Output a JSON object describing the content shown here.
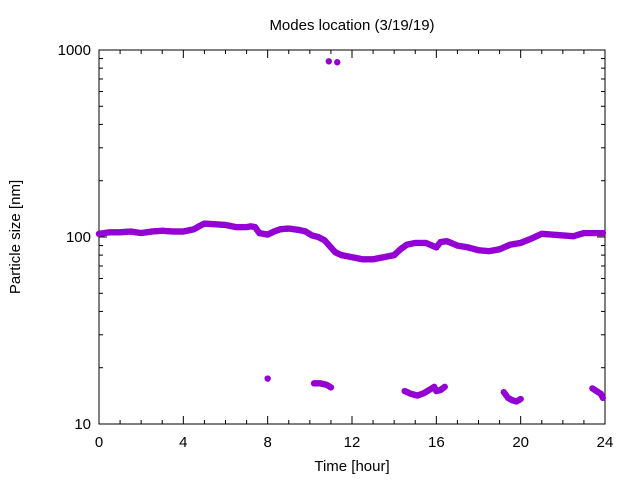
{
  "chart_data": {
    "type": "scatter",
    "title": "Modes location (3/19/19)",
    "xlabel": "Time [hour]",
    "ylabel": "Particle size [nm]",
    "xlim": [
      0,
      24
    ],
    "ylim": [
      10,
      1000
    ],
    "yscale": "log",
    "x_ticks": [
      0,
      4,
      8,
      12,
      16,
      20,
      24
    ],
    "y_ticks": [
      10,
      100,
      1000
    ],
    "grid": false,
    "legend": "none",
    "marker_color": "#9400d3",
    "series": [
      {
        "x": [
          0.0,
          0.5,
          1.0,
          1.5,
          2.0,
          2.5,
          3.0,
          3.5,
          4.0,
          4.5,
          4.8,
          5.0,
          5.5,
          6.0,
          6.5,
          7.0,
          7.2,
          7.4,
          7.6,
          8.0,
          8.3,
          8.6,
          9.0,
          9.5,
          9.8,
          10.1,
          10.4,
          10.7,
          11.0,
          11.2,
          11.5,
          12.0,
          12.5,
          13.0,
          13.5,
          14.0,
          14.3,
          14.6,
          15.0,
          15.5,
          16.0,
          16.2,
          16.5,
          16.8,
          17.0,
          17.5,
          18.0,
          18.5,
          19.0,
          19.5,
          20.0,
          20.5,
          21.0,
          21.5,
          22.0,
          22.5,
          23.0,
          23.5,
          23.9
        ],
        "y": [
          104,
          106,
          106,
          107,
          105,
          107,
          108,
          107,
          107,
          110,
          115,
          118,
          117,
          116,
          113,
          113,
          114,
          113,
          105,
          103,
          107,
          110,
          111,
          109,
          107,
          102,
          100,
          96,
          88,
          83,
          80,
          78,
          76,
          76,
          78,
          80,
          86,
          91,
          93,
          93,
          88,
          94,
          95,
          92,
          90,
          88,
          85,
          84,
          86,
          91,
          93,
          98,
          104,
          103,
          102,
          101,
          105,
          105,
          105
        ]
      },
      {
        "x": [
          10.9,
          11.3
        ],
        "y": [
          870,
          860
        ]
      },
      {
        "x": [
          8.0,
          10.2,
          10.5,
          10.8,
          11.0,
          14.5,
          14.8,
          15.1,
          15.4,
          15.7,
          15.9,
          16.0,
          16.2,
          16.4,
          19.2,
          19.4,
          19.6,
          19.8,
          20.0,
          23.4,
          23.6,
          23.8,
          23.9
        ],
        "y": [
          17.5,
          16.5,
          16.5,
          16.2,
          15.7,
          15.0,
          14.5,
          14.2,
          14.6,
          15.3,
          15.8,
          15.0,
          15.2,
          15.8,
          14.8,
          13.8,
          13.4,
          13.2,
          13.6,
          15.5,
          15.0,
          14.5,
          13.8
        ]
      }
    ]
  }
}
